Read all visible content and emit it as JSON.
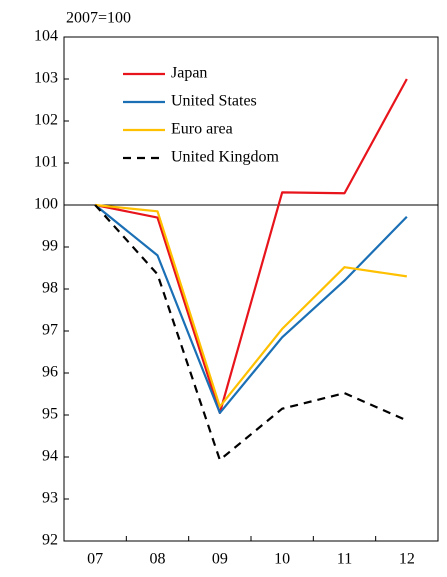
{
  "chart_data": {
    "type": "line",
    "annotation": "2007=100",
    "categories": [
      "07",
      "08",
      "09",
      "10",
      "11",
      "12"
    ],
    "series": [
      {
        "name": "Japan",
        "color": "#e8141c",
        "linestyle": "solid",
        "values": [
          100,
          99.7,
          95.05,
          100.3,
          100.28,
          103
        ]
      },
      {
        "name": "United States",
        "color": "#1a6fb5",
        "linestyle": "solid",
        "values": [
          100,
          98.8,
          95.05,
          96.85,
          98.2,
          99.72
        ]
      },
      {
        "name": "Euro area",
        "color": "#ffc000",
        "linestyle": "solid",
        "values": [
          100,
          99.85,
          95.2,
          97.05,
          98.52,
          98.3
        ]
      },
      {
        "name": "United Kingdom",
        "color": "#000000",
        "linestyle": "dashed",
        "values": [
          100,
          98.35,
          93.93,
          95.15,
          95.52,
          94.87
        ]
      }
    ],
    "ylim": [
      92,
      104
    ],
    "yticks": [
      92,
      93,
      94,
      95,
      96,
      97,
      98,
      99,
      100,
      101,
      102,
      103,
      104
    ],
    "reference_line": 100,
    "grid": false,
    "legend": "upper left"
  }
}
